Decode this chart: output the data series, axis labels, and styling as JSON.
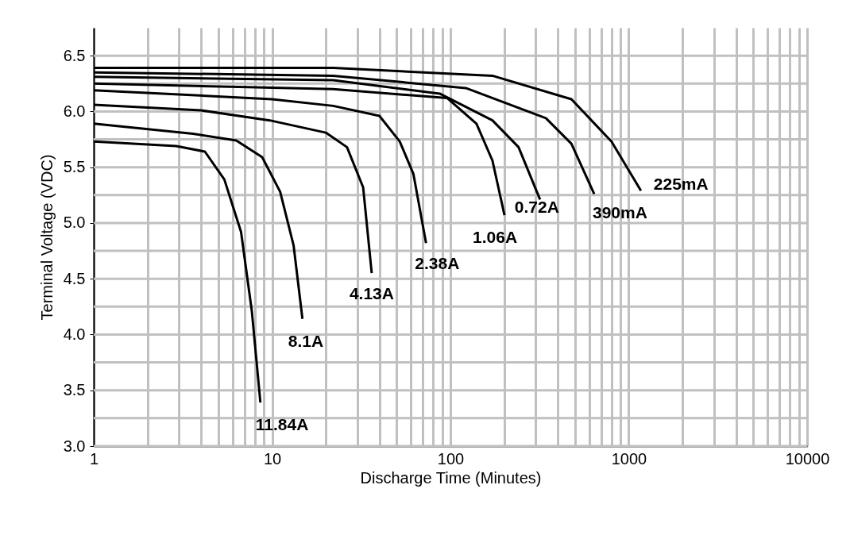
{
  "chart_data": {
    "type": "line",
    "xlabel": "Discharge Time (Minutes)",
    "ylabel": "Terminal Voltage (VDC)",
    "log": "x",
    "grid": true,
    "legend": false,
    "marker": "none",
    "line_style": "solid",
    "xlim": [
      1,
      10000
    ],
    "ylim": [
      3,
      6.75
    ],
    "xticks": [
      1,
      {
        "value": 2,
        "label": null
      },
      {
        "value": 3,
        "label": null
      },
      {
        "value": 4,
        "label": null
      },
      {
        "value": 5,
        "label": null
      },
      {
        "value": 6,
        "label": null
      },
      {
        "value": 7,
        "label": null
      },
      {
        "value": 8,
        "label": null
      },
      {
        "value": 9,
        "label": null
      },
      10,
      {
        "value": 20,
        "label": null
      },
      {
        "value": 30,
        "label": null
      },
      {
        "value": 40,
        "label": null
      },
      {
        "value": 50,
        "label": null
      },
      {
        "value": 60,
        "label": null
      },
      {
        "value": 70,
        "label": null
      },
      {
        "value": 80,
        "label": null
      },
      {
        "value": 90,
        "label": null
      },
      100,
      {
        "value": 200,
        "label": null
      },
      {
        "value": 300,
        "label": null
      },
      {
        "value": 400,
        "label": null
      },
      {
        "value": 500,
        "label": null
      },
      {
        "value": 600,
        "label": null
      },
      {
        "value": 700,
        "label": null
      },
      {
        "value": 800,
        "label": null
      },
      {
        "value": 900,
        "label": null
      },
      1000,
      {
        "value": 2000,
        "label": null
      },
      {
        "value": 3000,
        "label": null
      },
      {
        "value": 4000,
        "label": null
      },
      {
        "value": 5000,
        "label": null
      },
      {
        "value": 6000,
        "label": null
      },
      {
        "value": 7000,
        "label": null
      },
      {
        "value": 8000,
        "label": null
      },
      {
        "value": 9000,
        "label": null
      },
      10000
    ],
    "yticks": [
      {
        "value": 3,
        "label": "3.0"
      },
      {
        "value": 3.25,
        "label": null
      },
      {
        "value": 3.5,
        "label": "3.5"
      },
      {
        "value": 3.75,
        "label": null
      },
      {
        "value": 4,
        "label": "4.0"
      },
      {
        "value": 4.25,
        "label": null
      },
      {
        "value": 4.5,
        "label": "4.5"
      },
      {
        "value": 4.75,
        "label": null
      },
      {
        "value": 5,
        "label": "5.0"
      },
      {
        "value": 5.25,
        "label": null
      },
      {
        "value": 5.5,
        "label": "5.5"
      },
      {
        "value": 5.75,
        "label": null
      },
      {
        "value": 6,
        "label": "6.0"
      },
      {
        "value": 6.25,
        "label": null
      },
      {
        "value": 6.5,
        "label": "6.5"
      }
    ],
    "series": [
      {
        "name": "11.84A",
        "color": "#000000",
        "x": [
          1,
          2.9,
          4.2,
          5.4,
          6.7,
          7.7,
          8.6
        ],
        "values": [
          5.73,
          5.69,
          5.64,
          5.39,
          4.92,
          4.21,
          3.39
        ]
      },
      {
        "name": "8.1A",
        "color": "#000000",
        "x": [
          1,
          3.6,
          6.3,
          8.8,
          11.1,
          13.2,
          14.8
        ],
        "values": [
          5.89,
          5.8,
          5.74,
          5.59,
          5.28,
          4.8,
          4.14
        ]
      },
      {
        "name": "4.13A",
        "color": "#000000",
        "x": [
          1,
          4,
          9.7,
          20,
          26.3,
          32.4,
          36.2
        ],
        "values": [
          6.06,
          6.01,
          5.92,
          5.81,
          5.68,
          5.32,
          4.55
        ]
      },
      {
        "name": "2.38A",
        "color": "#000000",
        "x": [
          1,
          10,
          22,
          40,
          52,
          62,
          73
        ],
        "values": [
          6.19,
          6.11,
          6.05,
          5.96,
          5.73,
          5.44,
          4.82
        ]
      },
      {
        "name": "1.06A",
        "color": "#000000",
        "x": [
          1,
          6.5,
          22,
          96,
          140,
          172,
          201
        ],
        "values": [
          6.25,
          6.22,
          6.2,
          6.12,
          5.89,
          5.56,
          5.07
        ]
      },
      {
        "name": "0.72A",
        "color": "#000000",
        "x": [
          1,
          22,
          87,
          172,
          241,
          318
        ],
        "values": [
          6.31,
          6.28,
          6.16,
          5.92,
          5.68,
          5.21
        ]
      },
      {
        "name": "390mA",
        "color": "#000000",
        "x": [
          1,
          22,
          122,
          343,
          477,
          640
        ],
        "values": [
          6.35,
          6.32,
          6.21,
          5.94,
          5.71,
          5.26
        ]
      },
      {
        "name": "225mA",
        "color": "#000000",
        "x": [
          1,
          22,
          172,
          477,
          800,
          1170
        ],
        "values": [
          6.39,
          6.39,
          6.32,
          6.11,
          5.73,
          5.29
        ]
      }
    ]
  }
}
